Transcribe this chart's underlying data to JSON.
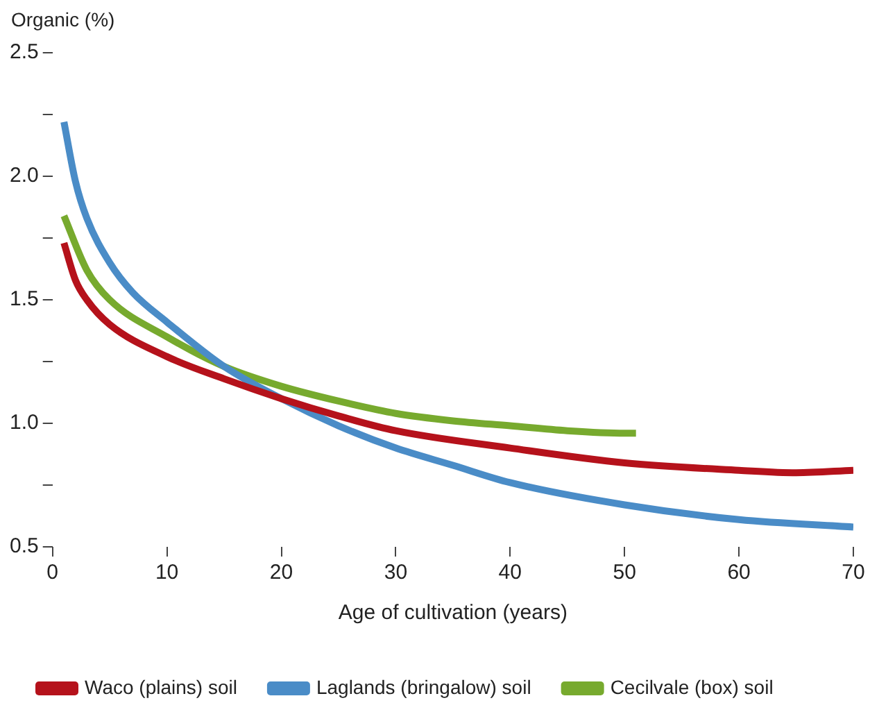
{
  "chart_data": {
    "type": "line",
    "xlabel": "Age of cultivation (years)",
    "ylabel": "Organic (%)",
    "xlim": [
      0,
      70
    ],
    "xticks": [
      0,
      10,
      20,
      30,
      40,
      50,
      60,
      70
    ],
    "ylim": [
      0.5,
      2.5
    ],
    "yticks": [
      0.5,
      {
        "value": 0.75,
        "label": null
      },
      {
        "value": 1,
        "label": "1.0"
      },
      {
        "value": 1.25,
        "label": null
      },
      1.5,
      {
        "value": 1.75,
        "label": null
      },
      {
        "value": 2,
        "label": "2.0"
      },
      {
        "value": 2.25,
        "label": null
      },
      2.5
    ],
    "grid": false,
    "legend": "bottom",
    "marker": "none",
    "line_style": "solid",
    "series": [
      {
        "name": "Waco (plains) soil",
        "color": "#b5121b",
        "x": [
          1,
          2,
          3,
          5,
          10,
          15,
          20,
          25,
          30,
          40,
          50,
          60,
          65,
          70
        ],
        "values": [
          1.73,
          1.58,
          1.5,
          1.4,
          1.27,
          1.18,
          1.1,
          1.03,
          0.97,
          0.9,
          0.84,
          0.81,
          0.8,
          0.81
        ]
      },
      {
        "name": "Laglands (bringalow) soil",
        "color": "#4a8cc7",
        "x": [
          1,
          2,
          3,
          5,
          7,
          10,
          15,
          20,
          25,
          30,
          35,
          40,
          50,
          60,
          70
        ],
        "values": [
          2.22,
          1.98,
          1.83,
          1.65,
          1.53,
          1.41,
          1.23,
          1.1,
          0.99,
          0.9,
          0.83,
          0.76,
          0.67,
          0.61,
          0.58
        ]
      },
      {
        "name": "Cecilvale (box) soil",
        "color": "#77aa2e",
        "x": [
          1,
          3,
          5,
          10,
          15,
          20,
          25,
          30,
          35,
          40,
          45,
          50,
          51
        ],
        "values": [
          1.84,
          1.62,
          1.5,
          1.35,
          1.23,
          1.15,
          1.09,
          1.04,
          1.01,
          0.99,
          0.97,
          0.96,
          0.96
        ]
      }
    ]
  }
}
